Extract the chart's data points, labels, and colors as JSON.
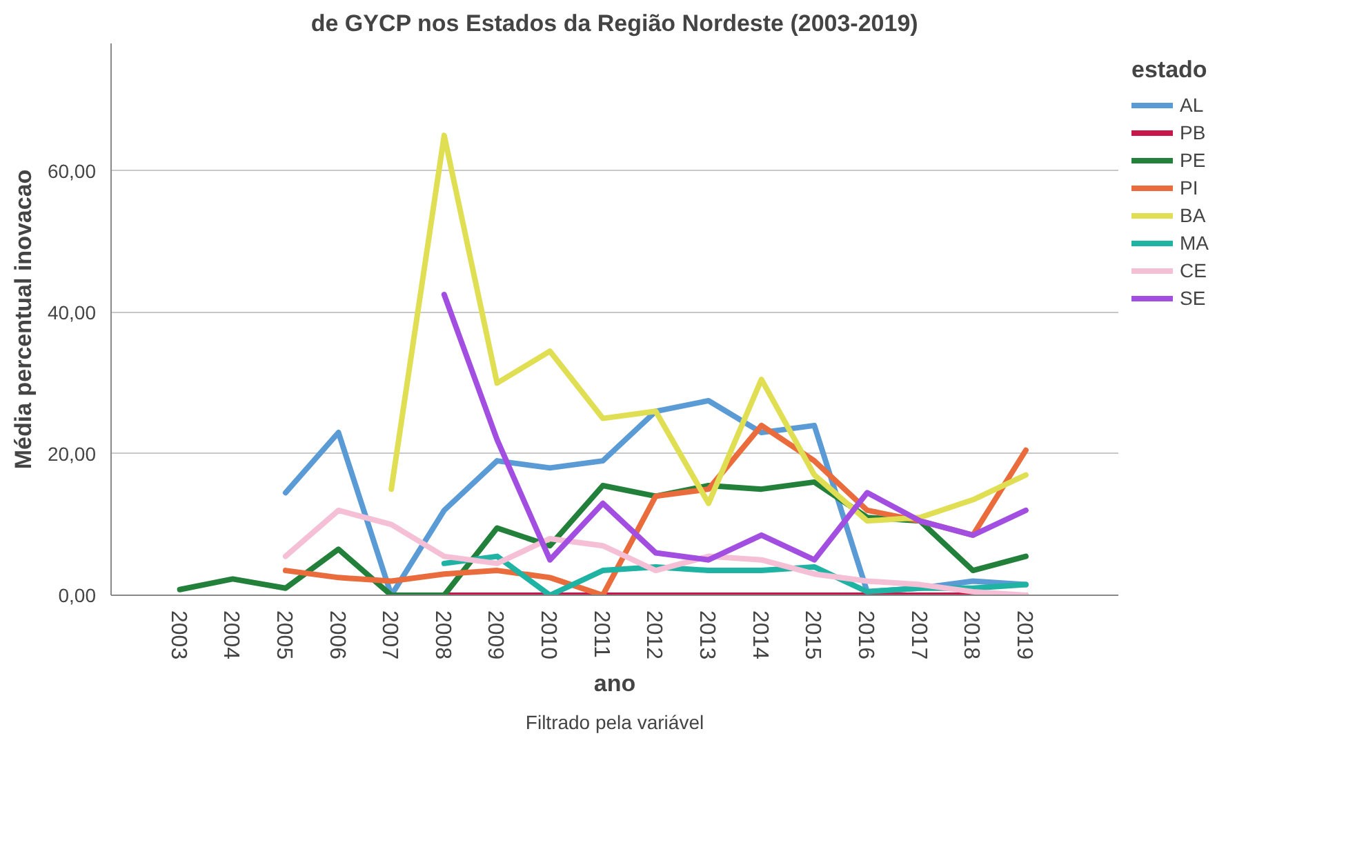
{
  "chart_data": {
    "type": "line",
    "title": "de GYCP nos Estados da Região Nordeste (2003-2019)",
    "xlabel": "ano",
    "ylabel": "Média percentual inovacao",
    "legend_title": "estado",
    "annotations": [
      "Filtrado pela variável"
    ],
    "categories": [
      "2003",
      "2004",
      "2005",
      "2006",
      "2007",
      "2008",
      "2009",
      "2010",
      "2011",
      "2012",
      "2013",
      "2014",
      "2015",
      "2016",
      "2017",
      "2018",
      "2019"
    ],
    "ylim": [
      0,
      78
    ],
    "yticks": [
      {
        "value": 0,
        "label": "0,00"
      },
      {
        "value": 20,
        "label": "20,00"
      },
      {
        "value": 40,
        "label": "40,00"
      },
      {
        "value": 60,
        "label": "60,00"
      }
    ],
    "grid": "y",
    "legend": "right",
    "marker": "none",
    "line_style": "solid",
    "series": [
      {
        "name": "AL",
        "color": "#5b9bd5",
        "values": [
          null,
          null,
          14.5,
          23,
          0,
          12,
          19,
          18,
          19,
          26,
          27.5,
          23,
          24,
          0.5,
          1,
          2,
          1.5
        ]
      },
      {
        "name": "PB",
        "color": "#c8174a",
        "values": [
          null,
          null,
          null,
          null,
          0,
          0,
          0,
          0,
          0,
          0,
          0,
          0,
          0,
          0,
          0,
          0,
          0
        ]
      },
      {
        "name": "PE",
        "color": "#22803a",
        "values": [
          0.8,
          2.3,
          1,
          6.5,
          0,
          0,
          9.5,
          7,
          15.5,
          14,
          15.5,
          15,
          16,
          11,
          10.5,
          3.5,
          5.5
        ]
      },
      {
        "name": "PI",
        "color": "#ea6b3c",
        "values": [
          null,
          null,
          3.5,
          2.5,
          2,
          3,
          3.5,
          2.5,
          0,
          14,
          15,
          24,
          19,
          12,
          10.5,
          8.5,
          20.5
        ]
      },
      {
        "name": "BA",
        "color": "#e0de52",
        "values": [
          null,
          null,
          null,
          null,
          15,
          65,
          30,
          34.5,
          25,
          26,
          13,
          30.5,
          17,
          10.5,
          11,
          13.5,
          17
        ]
      },
      {
        "name": "MA",
        "color": "#1fb3a3",
        "values": [
          null,
          null,
          null,
          null,
          null,
          4.5,
          5.5,
          0,
          3.5,
          4,
          3.5,
          3.5,
          4,
          0.5,
          1,
          1,
          1.5
        ]
      },
      {
        "name": "CE",
        "color": "#f5bfd6",
        "values": [
          null,
          null,
          5.5,
          12,
          10,
          5.5,
          4.5,
          8,
          7,
          3.5,
          5.5,
          5,
          3,
          2,
          1.5,
          0.5,
          0
        ]
      },
      {
        "name": "SE",
        "color": "#a24ee0",
        "values": [
          null,
          null,
          null,
          null,
          null,
          42.5,
          22,
          5,
          13,
          6,
          5,
          8.5,
          5,
          14.5,
          10.5,
          8.5,
          12
        ]
      }
    ]
  }
}
